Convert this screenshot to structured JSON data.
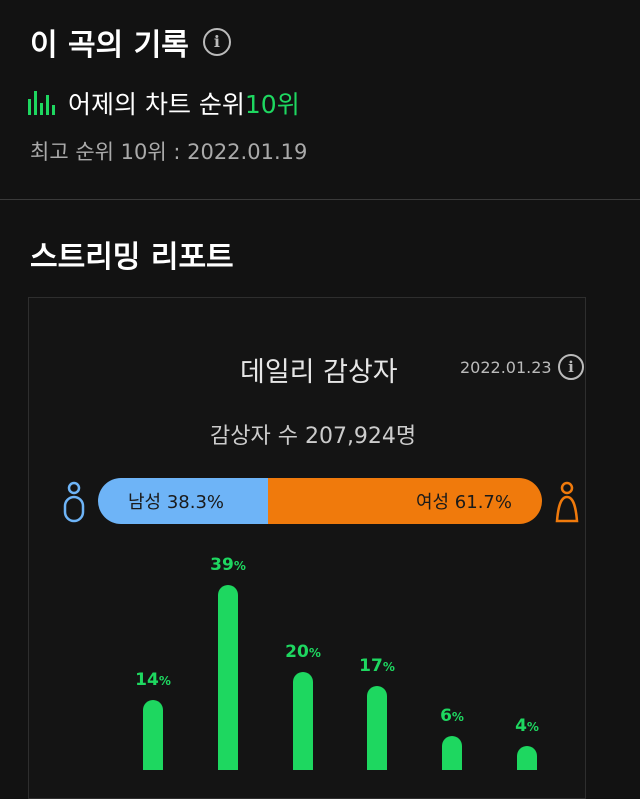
{
  "record": {
    "title": "이 곡의 기록",
    "info_icon": "info-icon",
    "chart_rank_prefix": "어제의 차트 순위 ",
    "chart_rank_value": "10위",
    "best_rank": "최고 순위 10위 : 2022.01.19"
  },
  "report": {
    "title": "스트리밍 리포트",
    "daily_title": "데일리 감상자",
    "daily_date": "2022.01.23",
    "listeners": "감상자 수 207,924명",
    "male_label": "남성 38.3%",
    "female_label": "여성 61.7%"
  },
  "colors": {
    "accent": "#1ed760",
    "male": "#6eb4f7",
    "female": "#f07a0c",
    "background": "#121212"
  },
  "chart_data": {
    "type": "bar",
    "values": [
      14,
      39,
      20,
      17,
      6,
      4
    ],
    "value_suffix": "%"
  }
}
